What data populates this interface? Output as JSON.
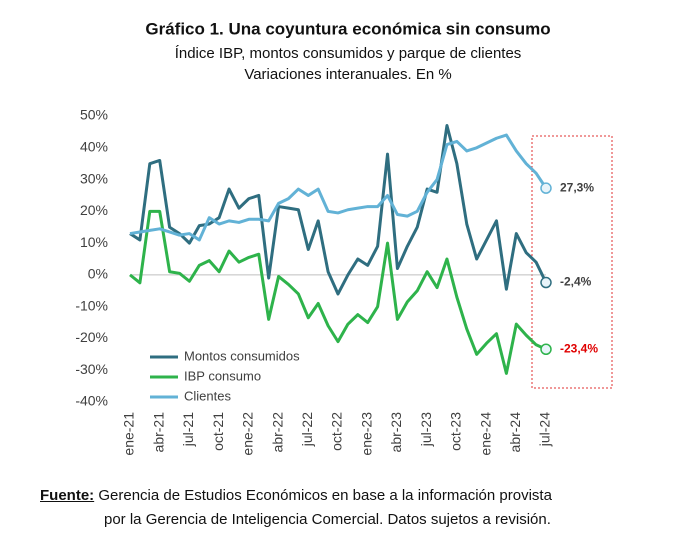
{
  "chart_data": {
    "type": "line",
    "title": "Gráfico 1. Una coyuntura económica sin consumo",
    "subtitle": [
      "Índice IBP, montos consumidos y parque de clientes",
      "Variaciones interanuales. En %"
    ],
    "categories": [
      "ene-21",
      null,
      null,
      "abr-21",
      null,
      null,
      "jul-21",
      null,
      null,
      "oct-21",
      null,
      null,
      "ene-22",
      null,
      null,
      "abr-22",
      null,
      null,
      "jul-22",
      null,
      null,
      "oct-22",
      null,
      null,
      "ene-23",
      null,
      null,
      "abr-23",
      null,
      null,
      "jul-23",
      null,
      null,
      "oct-23",
      null,
      null,
      "ene-24",
      null,
      null,
      "abr-24",
      null,
      null,
      "jul-24"
    ],
    "series": [
      {
        "name": "Montos consumidos",
        "color": "#2f6e80",
        "values": [
          13,
          11,
          35,
          36,
          15,
          13,
          10,
          15.5,
          16,
          18,
          27,
          21,
          24,
          25,
          -1,
          21.5,
          21,
          20.5,
          8,
          17,
          1,
          -6,
          0,
          5,
          3,
          9,
          38,
          2,
          9,
          15,
          27,
          26,
          47,
          35,
          16,
          5,
          11,
          17,
          -4.5,
          13,
          7,
          4,
          -2.4
        ],
        "value_labels": [
          null,
          null,
          null,
          null,
          null,
          null,
          null,
          null,
          null,
          null,
          null,
          null,
          null,
          null,
          null,
          null,
          null,
          null,
          null,
          null,
          null,
          null,
          null,
          null,
          null,
          null,
          null,
          null,
          null,
          null,
          null,
          null,
          null,
          null,
          null,
          null,
          null,
          null,
          null,
          null,
          null,
          null,
          "-2,4%"
        ],
        "label_color": "#404040"
      },
      {
        "name": "IBP consumo",
        "color": "#2eb34b",
        "values": [
          0,
          -2.5,
          20,
          20,
          1,
          0.5,
          -2,
          3,
          4.5,
          1,
          7.5,
          4,
          5.5,
          6.5,
          -14,
          -0.5,
          -3,
          -6,
          -13.5,
          -9,
          -16,
          -21,
          -15.5,
          -12.5,
          -15,
          -10,
          10,
          -14,
          -8.5,
          -5,
          1,
          -4,
          5,
          -7,
          -17,
          -25,
          -21.5,
          -18.5,
          -31,
          -15.5,
          -19,
          -22,
          -23.4
        ],
        "value_labels": [
          null,
          null,
          null,
          null,
          null,
          null,
          null,
          null,
          null,
          null,
          null,
          null,
          null,
          null,
          null,
          null,
          null,
          null,
          null,
          null,
          null,
          null,
          null,
          null,
          null,
          null,
          null,
          null,
          null,
          null,
          null,
          null,
          null,
          null,
          null,
          null,
          null,
          null,
          null,
          null,
          null,
          null,
          "-23,4%"
        ],
        "label_color": "#e00000"
      },
      {
        "name": "Clientes",
        "color": "#62b2d6",
        "values": [
          13,
          13.5,
          14,
          14.5,
          13.5,
          12.5,
          13,
          11,
          18,
          16,
          17,
          16.5,
          17.5,
          17.5,
          17,
          22.5,
          24,
          27,
          25,
          27,
          20,
          19.5,
          20.5,
          21,
          21.5,
          21.5,
          25,
          19,
          18.5,
          20,
          26,
          30,
          41,
          42,
          39,
          40,
          41.5,
          43,
          44,
          39,
          35,
          32,
          27.3
        ],
        "value_labels": [
          null,
          null,
          null,
          null,
          null,
          null,
          null,
          null,
          null,
          null,
          null,
          null,
          null,
          null,
          null,
          null,
          null,
          null,
          null,
          null,
          null,
          null,
          null,
          null,
          null,
          null,
          null,
          null,
          null,
          null,
          null,
          null,
          null,
          null,
          null,
          null,
          null,
          null,
          null,
          null,
          null,
          null,
          "27,3%"
        ],
        "label_color": "#404040"
      }
    ],
    "ylim": [
      -40,
      50
    ],
    "yticks": [
      {
        "value": -40,
        "label": "-40%"
      },
      {
        "value": -30,
        "label": "-30%"
      },
      {
        "value": -20,
        "label": "-20%"
      },
      {
        "value": -10,
        "label": "-10%"
      },
      {
        "value": 0,
        "label": "0%"
      },
      {
        "value": 10,
        "label": "10%"
      },
      {
        "value": 20,
        "label": "20%"
      },
      {
        "value": 30,
        "label": "30%"
      },
      {
        "value": 40,
        "label": "40%"
      },
      {
        "value": 50,
        "label": "50%"
      }
    ],
    "grid": false,
    "legend": "lower left"
  },
  "source": {
    "label": "Fuente:",
    "lines": [
      "Gerencia de Estudios Económicos en base a la información provista",
      "por la Gerencia de Inteligencia Comercial. Datos sujetos a revisión."
    ]
  }
}
